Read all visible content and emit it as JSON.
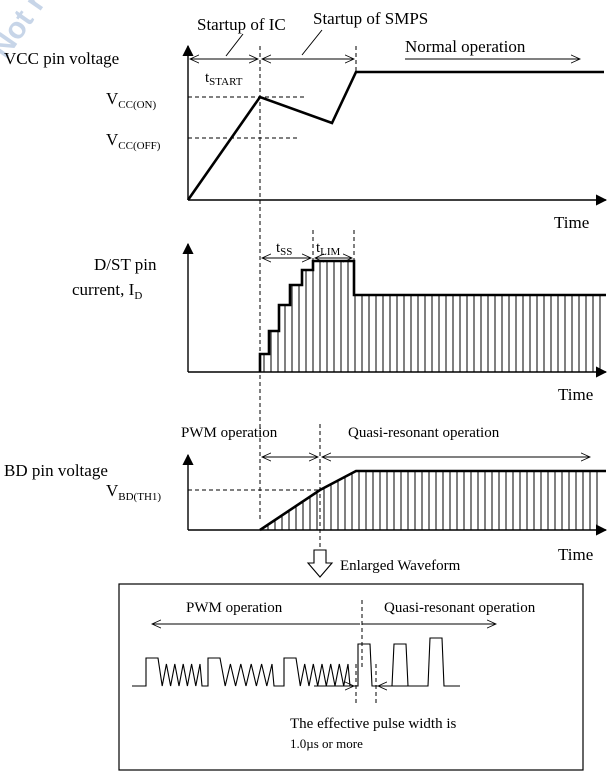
{
  "watermark": "Not recommended",
  "panel1": {
    "ylabel": "VCC pin voltage",
    "xlabel": "Time",
    "startup_ic": "Startup of IC",
    "startup_smps": "Startup of SMPS",
    "normal": "Normal operation",
    "t_start_main": "t",
    "t_start_sub": "START",
    "vcc_on_main": "V",
    "vcc_on_sub": "CC(ON)",
    "vcc_off_main": "V",
    "vcc_off_sub": "CC(OFF)"
  },
  "panel2": {
    "ylabel_line1": "D/ST pin",
    "ylabel_line2_main": "current, I",
    "ylabel_line2_sub": "D",
    "xlabel": "Time",
    "tss_main": "t",
    "tss_sub": "SS",
    "tlim_main": "t",
    "tlim_sub": "LIM"
  },
  "panel3": {
    "ylabel": "BD pin voltage",
    "xlabel": "Time",
    "pwm": "PWM operation",
    "qr": "Quasi-resonant operation",
    "vbd_main": "V",
    "vbd_sub": "BD(TH1)"
  },
  "enlarged": {
    "label": "Enlarged Waveform",
    "pwm": "PWM operation",
    "qr": "Quasi-resonant operation",
    "note_line1": "The effective pulse width is",
    "note_line2": "1.0µs or more"
  }
}
